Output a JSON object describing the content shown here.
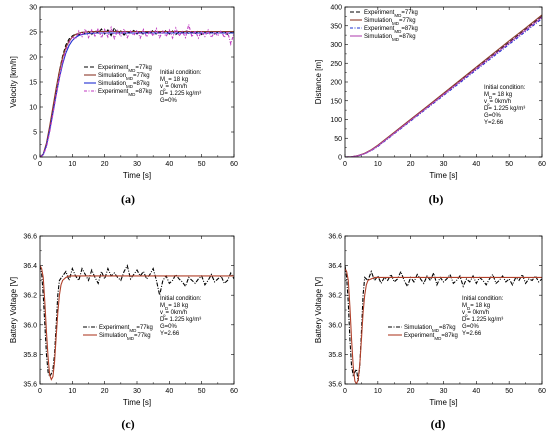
{
  "chart_data": [
    {
      "type": "line",
      "panel_label": "(a)",
      "xlabel": "Time [s]",
      "ylabel": "Velocity [km/h]",
      "xlim": [
        0,
        60
      ],
      "ylim": [
        0,
        30
      ],
      "xticks": [
        0,
        10,
        20,
        30,
        40,
        50,
        60
      ],
      "yticks": [
        0,
        5,
        10,
        15,
        20,
        25,
        30
      ],
      "legend_position": "center-right",
      "annotation": [
        "Initial condition:",
        "M_D= 18 kg",
        "v_o= 0km/h",
        "D= 1.225 kg/m³",
        "G=0%"
      ],
      "series": [
        {
          "name": "Experiment_M_D=77kg",
          "color": "#000000",
          "dash": "4,2",
          "x": [
            0,
            1,
            2,
            3,
            4,
            5,
            6,
            7,
            8,
            9,
            10,
            11,
            12,
            13,
            14,
            15,
            16,
            17,
            18,
            19,
            20,
            21,
            22,
            23,
            24,
            25,
            26,
            27,
            28,
            29,
            30,
            31,
            32,
            33,
            34,
            35,
            36,
            37,
            38,
            39,
            40,
            41,
            42,
            43,
            44,
            45,
            46,
            47,
            48,
            49,
            50,
            51,
            52,
            53,
            54,
            55,
            56,
            57,
            58,
            59,
            60
          ],
          "y": [
            0,
            0.5,
            2.5,
            5.8,
            9.5,
            13.5,
            17.2,
            20.2,
            22.4,
            23.6,
            24.2,
            24.6,
            24.4,
            24.9,
            24.7,
            25.1,
            24.5,
            25.3,
            24.8,
            25.6,
            24.6,
            25.4,
            24.3,
            25.8,
            24.7,
            25.2,
            24.4,
            25.1,
            24.8,
            25.3,
            24.6,
            25.2,
            24.5,
            25.0,
            24.7,
            25.4,
            24.5,
            25.1,
            24.8,
            25.3,
            24.6,
            25.2,
            24.5,
            25.0,
            24.8,
            25.3,
            24.6,
            25.1,
            24.7,
            25.2,
            24.5,
            24.9,
            24.7,
            25.1,
            24.6,
            25.0,
            24.8,
            25.2,
            24.5,
            24.9,
            24.7
          ]
        },
        {
          "name": "Simulation_M_D=77kg",
          "color": "#8b3a2a",
          "dash": "",
          "x": [
            0,
            1,
            2,
            3,
            4,
            5,
            6,
            7,
            8,
            9,
            10,
            11,
            12,
            13,
            14,
            15,
            16,
            18,
            20,
            25,
            30,
            40,
            50,
            60
          ],
          "y": [
            0,
            0.6,
            2.8,
            6.2,
            10.0,
            13.8,
            17.2,
            19.9,
            21.9,
            23.2,
            24.0,
            24.5,
            24.8,
            24.95,
            25.0,
            25.05,
            25.08,
            25.1,
            25.1,
            25.1,
            25.1,
            25.1,
            25.1,
            25.1
          ]
        },
        {
          "name": "Simulation_M_D=87kg",
          "color": "#1f2fd1",
          "dash": "",
          "x": [
            0,
            1,
            2,
            3,
            4,
            5,
            6,
            7,
            8,
            9,
            10,
            11,
            12,
            13,
            14,
            15,
            16,
            18,
            20,
            25,
            30,
            40,
            50,
            60
          ],
          "y": [
            0,
            0.5,
            2.3,
            5.3,
            8.8,
            12.4,
            15.8,
            18.6,
            20.8,
            22.3,
            23.3,
            23.9,
            24.3,
            24.5,
            24.6,
            24.7,
            24.75,
            24.8,
            24.8,
            24.8,
            24.8,
            24.8,
            24.8,
            24.8
          ]
        },
        {
          "name": "Experiment_M_D=87kg",
          "color": "#c03ac0",
          "dash": "3,1.5,1,1.5",
          "x": [
            0,
            1,
            2,
            3,
            4,
            5,
            6,
            7,
            8,
            9,
            10,
            11,
            12,
            13,
            14,
            15,
            16,
            17,
            18,
            19,
            20,
            21,
            22,
            23,
            24,
            25,
            26,
            27,
            28,
            29,
            30,
            31,
            32,
            33,
            34,
            35,
            36,
            37,
            38,
            39,
            40,
            41,
            42,
            43,
            44,
            45,
            46,
            47,
            48,
            49,
            50,
            51,
            52,
            53,
            54,
            55,
            56,
            57,
            58,
            59,
            60
          ],
          "y": [
            0,
            0.4,
            2.0,
            5.0,
            8.6,
            12.3,
            15.9,
            19.0,
            21.4,
            22.9,
            24.0,
            23.6,
            25.2,
            24.1,
            25.6,
            23.9,
            25.4,
            24.2,
            25.7,
            23.8,
            25.5,
            24.0,
            25.9,
            23.7,
            25.3,
            24.1,
            25.6,
            23.9,
            25.2,
            24.3,
            25.4,
            23.8,
            25.5,
            24.0,
            25.3,
            24.2,
            25.7,
            23.9,
            25.2,
            24.1,
            25.4,
            23.8,
            25.8,
            24.2,
            25.1,
            23.9,
            26.5,
            24.0,
            25.3,
            23.8,
            25.2,
            24.1,
            25.4,
            23.9,
            25.0,
            24.2,
            25.3,
            23.9,
            25.1,
            22.6,
            24.8
          ]
        }
      ]
    },
    {
      "type": "line",
      "panel_label": "(b)",
      "xlabel": "Time [s]",
      "ylabel": "Distance [m]",
      "xlim": [
        0,
        60
      ],
      "ylim": [
        0,
        400
      ],
      "xticks": [
        0,
        10,
        20,
        30,
        40,
        50,
        60
      ],
      "yticks": [
        0,
        50,
        100,
        150,
        200,
        250,
        300,
        350,
        400
      ],
      "legend_position": "top-left",
      "annotation": [
        "Initial condition:",
        "M_D= 18 kg",
        "v_o= 0km/h",
        "D= 1.225 kg/m³",
        "G=0%",
        "Y=2.66"
      ],
      "series": [
        {
          "name": "Experiment_M_D=77kg",
          "color": "#000000",
          "dash": "4,2",
          "x": [
            0,
            2,
            4,
            6,
            8,
            10,
            15,
            20,
            25,
            30,
            35,
            40,
            45,
            50,
            55,
            60
          ],
          "y": [
            0,
            0.3,
            3.5,
            9.5,
            18.5,
            30,
            64,
            98.5,
            133,
            168,
            202.5,
            237,
            271.5,
            306,
            340.5,
            375
          ]
        },
        {
          "name": "Simulation_M_D=77kg",
          "color": "#8b3a2a",
          "dash": "",
          "x": [
            0,
            2,
            4,
            6,
            8,
            10,
            15,
            20,
            25,
            30,
            35,
            40,
            45,
            50,
            55,
            60
          ],
          "y": [
            0,
            0.5,
            4,
            10,
            19.5,
            31.5,
            66,
            100.5,
            135,
            170,
            205,
            240,
            275,
            310,
            344,
            379
          ]
        },
        {
          "name": "Experiment_M_D=87kg",
          "color": "#1f2fd1",
          "dash": "3,1.5,1,1.5",
          "x": [
            0,
            2,
            4,
            6,
            8,
            10,
            15,
            20,
            25,
            30,
            35,
            40,
            45,
            50,
            55,
            60
          ],
          "y": [
            0,
            0.3,
            3,
            8.5,
            17,
            28,
            62,
            96,
            130,
            164,
            198,
            232.5,
            266.5,
            300.5,
            334.5,
            369
          ]
        },
        {
          "name": "Simulation_M_D=87kg",
          "color": "#b44ab4",
          "dash": "",
          "x": [
            0,
            2,
            4,
            6,
            8,
            10,
            15,
            20,
            25,
            30,
            35,
            40,
            45,
            50,
            55,
            60
          ],
          "y": [
            0,
            0.4,
            3.5,
            9,
            18,
            29.5,
            63.5,
            98,
            132,
            166.5,
            201,
            235.5,
            270,
            304,
            338.5,
            373
          ]
        }
      ]
    },
    {
      "type": "line",
      "panel_label": "(c)",
      "xlabel": "Time [s]",
      "ylabel": "Battery Voltage [V]",
      "xlim": [
        0,
        60
      ],
      "ylim": [
        35.6,
        36.6
      ],
      "xticks": [
        0,
        10,
        20,
        30,
        40,
        50,
        60
      ],
      "yticks": [
        35.6,
        35.8,
        36.0,
        36.2,
        36.4,
        36.6
      ],
      "legend_position": "bottom-left",
      "annotation": [
        "Initial condition:",
        "M_D= 18 kg",
        "v_o= 0km/h",
        "D= 1.225 kg/m³",
        "G=0%",
        "Y=2.66"
      ],
      "series": [
        {
          "name": "Experiment_M_D=77kg",
          "color": "#000000",
          "dash": "4,1.5,1,1.5",
          "x": [
            0,
            0.5,
            1,
            1.5,
            2,
            2.5,
            3,
            3.5,
            4,
            4.5,
            5,
            5.5,
            6,
            7,
            8,
            9,
            10,
            11,
            12,
            13,
            14,
            15,
            16,
            17,
            18,
            19,
            20,
            21,
            22,
            23,
            24,
            25,
            26,
            27,
            28,
            29,
            30,
            31,
            32,
            33,
            34,
            35,
            36,
            37,
            38,
            39,
            40,
            41,
            42,
            43,
            44,
            45,
            46,
            47,
            48,
            49,
            50,
            51,
            52,
            53,
            54,
            55,
            56,
            57,
            58,
            59,
            60
          ],
          "y": [
            36.4,
            36.35,
            36.2,
            36.0,
            35.8,
            35.68,
            35.65,
            35.67,
            35.7,
            35.8,
            36.0,
            36.2,
            36.3,
            36.33,
            36.36,
            36.3,
            36.38,
            36.33,
            36.3,
            36.38,
            36.34,
            36.3,
            36.37,
            36.32,
            36.28,
            36.36,
            36.31,
            36.38,
            36.33,
            36.35,
            36.32,
            36.3,
            36.36,
            36.4,
            36.31,
            36.34,
            36.37,
            36.33,
            36.36,
            36.31,
            36.34,
            36.38,
            36.3,
            36.2,
            36.3,
            36.33,
            36.28,
            36.3,
            36.34,
            36.31,
            36.29,
            36.26,
            36.32,
            36.3,
            36.28,
            36.31,
            36.33,
            36.27,
            36.3,
            36.34,
            36.29,
            36.31,
            36.33,
            36.28,
            36.3,
            36.35,
            36.31
          ]
        },
        {
          "name": "Simulation_M_D=77kg",
          "color": "#b0402a",
          "dash": "",
          "x": [
            0,
            0.5,
            1,
            1.5,
            2,
            2.5,
            3,
            3.5,
            4,
            4.5,
            5,
            5.5,
            6,
            6.5,
            7,
            8,
            9,
            10,
            12,
            15,
            20,
            30,
            40,
            50,
            60
          ],
          "y": [
            36.4,
            36.38,
            36.32,
            36.15,
            35.95,
            35.78,
            35.66,
            35.63,
            35.65,
            35.75,
            35.92,
            36.08,
            36.2,
            36.27,
            36.3,
            36.32,
            36.33,
            36.33,
            36.33,
            36.33,
            36.33,
            36.33,
            36.33,
            36.33,
            36.33
          ]
        }
      ]
    },
    {
      "type": "line",
      "panel_label": "(d)",
      "xlabel": "Time [s]",
      "ylabel": "Battery Voltage [V]",
      "xlim": [
        0,
        60
      ],
      "ylim": [
        35.6,
        36.6
      ],
      "xticks": [
        0,
        10,
        20,
        30,
        40,
        50,
        60
      ],
      "yticks": [
        35.6,
        35.8,
        36.0,
        36.2,
        36.4,
        36.6
      ],
      "legend_position": "bottom-left",
      "annotation": [
        "Initial condition:",
        "M_D= 18 kg",
        "v_o= 0km/h",
        "D= 1.225 kg/m³",
        "G=0%",
        "Y=2.66"
      ],
      "series": [
        {
          "name": "Simulation_M_D=87kg",
          "color": "#000000",
          "dash": "4,1.5,1,1.5",
          "x": [
            0,
            0.5,
            1,
            1.5,
            2,
            2.5,
            3,
            3.5,
            4,
            4.5,
            5,
            5.5,
            6,
            7,
            8,
            9,
            10,
            11,
            12,
            13,
            14,
            15,
            16,
            17,
            18,
            19,
            20,
            21,
            22,
            23,
            24,
            25,
            26,
            27,
            28,
            29,
            30,
            31,
            32,
            33,
            34,
            35,
            36,
            37,
            38,
            39,
            40,
            41,
            42,
            43,
            44,
            45,
            46,
            47,
            48,
            49,
            50,
            51,
            52,
            53,
            54,
            55,
            56,
            57,
            58,
            59,
            60
          ],
          "y": [
            36.4,
            36.32,
            36.15,
            35.9,
            35.72,
            35.66,
            35.68,
            35.7,
            35.62,
            35.72,
            35.95,
            36.2,
            36.32,
            36.3,
            36.36,
            36.3,
            36.33,
            36.28,
            36.32,
            36.3,
            36.34,
            36.29,
            36.31,
            36.36,
            36.3,
            36.26,
            36.32,
            36.29,
            36.34,
            36.31,
            36.28,
            36.33,
            36.3,
            36.35,
            36.27,
            36.32,
            36.29,
            36.31,
            36.34,
            36.28,
            36.3,
            36.33,
            36.26,
            36.31,
            36.29,
            36.33,
            36.28,
            36.32,
            36.3,
            36.27,
            36.31,
            36.34,
            36.28,
            36.3,
            36.33,
            36.29,
            36.31,
            36.27,
            36.32,
            36.3,
            36.34,
            36.28,
            36.31,
            36.3,
            36.33,
            36.29,
            36.31
          ]
        },
        {
          "name": "Experiment_M_D=87kg",
          "color": "#b0402a",
          "dash": "",
          "x": [
            0,
            0.5,
            1,
            1.5,
            2,
            2.5,
            3,
            3.5,
            4,
            4.5,
            5,
            5.5,
            6,
            6.5,
            7,
            8,
            9,
            10,
            12,
            15,
            20,
            30,
            40,
            50,
            60
          ],
          "y": [
            36.38,
            36.36,
            36.3,
            36.12,
            35.9,
            35.72,
            35.62,
            35.6,
            35.63,
            35.73,
            35.9,
            36.08,
            36.2,
            36.27,
            36.3,
            36.31,
            36.32,
            36.32,
            36.32,
            36.32,
            36.32,
            36.32,
            36.32,
            36.32,
            36.32
          ]
        }
      ]
    }
  ]
}
